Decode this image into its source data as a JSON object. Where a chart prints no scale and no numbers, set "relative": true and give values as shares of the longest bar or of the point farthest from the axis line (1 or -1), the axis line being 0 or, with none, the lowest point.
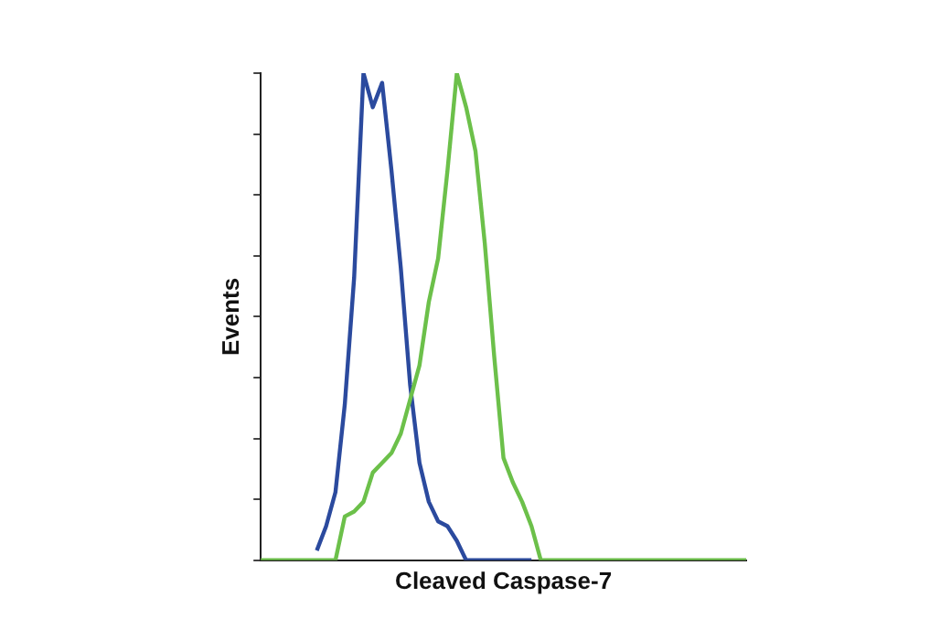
{
  "chart_data": {
    "type": "line",
    "relative": true,
    "xlabel": "Cleaved Caspase-7",
    "ylabel": "Events",
    "grid": false,
    "legend": false,
    "marker": "none",
    "line_style": "solid",
    "categories": [
      null,
      null,
      null,
      null,
      null,
      null,
      null,
      null,
      null,
      null,
      null,
      null,
      null,
      null,
      null,
      null,
      null,
      null,
      null,
      null,
      null,
      null,
      null,
      null,
      null,
      null,
      null,
      null,
      null,
      null,
      null,
      null,
      null,
      null,
      null,
      null,
      null,
      null,
      null,
      null,
      null,
      null,
      null,
      null,
      null,
      null,
      null,
      null,
      null,
      null,
      null,
      null,
      null
    ],
    "series": [
      {
        "color": "#2b4a9e",
        "values": [
          null,
          null,
          null,
          null,
          null,
          null,
          0.02,
          0.07,
          0.14,
          0.32,
          0.58,
          1,
          0.93,
          0.98,
          0.8,
          0.6,
          0.36,
          0.2,
          0.12,
          0.08,
          0.07,
          0.04,
          0,
          0,
          0,
          0,
          0,
          0,
          0,
          0,
          null,
          null,
          null,
          null,
          null,
          null,
          null,
          null,
          null,
          null,
          null,
          null,
          null,
          null,
          null,
          null,
          null,
          null,
          null,
          null,
          null,
          null,
          null
        ]
      },
      {
        "color": "#6cc04a",
        "values": [
          0,
          0,
          0,
          0,
          0,
          0,
          0,
          0,
          0,
          0.09,
          0.1,
          0.12,
          0.18,
          0.2,
          0.22,
          0.26,
          0.33,
          0.4,
          0.53,
          0.62,
          0.8,
          1,
          0.93,
          0.84,
          0.65,
          0.42,
          0.21,
          0.16,
          0.12,
          0.07,
          0,
          0,
          0,
          0,
          0,
          0,
          0,
          0,
          0,
          0,
          0,
          0,
          0,
          0,
          0,
          0,
          0,
          0,
          0,
          0,
          0,
          0,
          0
        ]
      }
    ]
  }
}
